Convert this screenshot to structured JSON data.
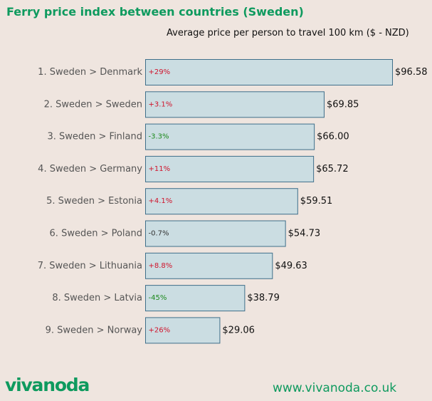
{
  "chart_data": {
    "type": "bar",
    "orientation": "horizontal",
    "title": "Ferry price index between countries (Sweden)",
    "subtitle": "Average price per person to travel 100 km ($ - NZD)",
    "categories": [
      "1. Sweden > Denmark",
      "2. Sweden > Sweden",
      "3. Sweden > Finland",
      "4. Sweden > Germany",
      "5. Sweden > Estonia",
      "6. Sweden > Poland",
      "7. Sweden > Lithuania",
      "8. Sweden > Latvia",
      "9. Sweden > Norway"
    ],
    "values": [
      96.58,
      69.85,
      66.0,
      65.72,
      59.51,
      54.73,
      49.63,
      38.79,
      29.06
    ],
    "value_labels": [
      "$96.58",
      "$69.85",
      "$66.00",
      "$65.72",
      "$59.51",
      "$54.73",
      "$49.63",
      "$38.79",
      "$29.06"
    ],
    "changes": [
      "+29%",
      "+3.1%",
      "-3.3%",
      "+11%",
      "+4.1%",
      "-0.7%",
      "+8.8%",
      "-45%",
      "+26%"
    ],
    "xlim": [
      0,
      96.58
    ],
    "grid": false,
    "colors": {
      "bar_fill": "#cbdde2",
      "bar_stroke": "#3f6f8a",
      "increase": "#d0142c",
      "large_decrease": "#1e8a1e",
      "small_decrease": "#333333",
      "category_label": "#555555"
    }
  },
  "footer": {
    "logo": "vivanoda",
    "url": "www.vivanoda.co.uk"
  }
}
